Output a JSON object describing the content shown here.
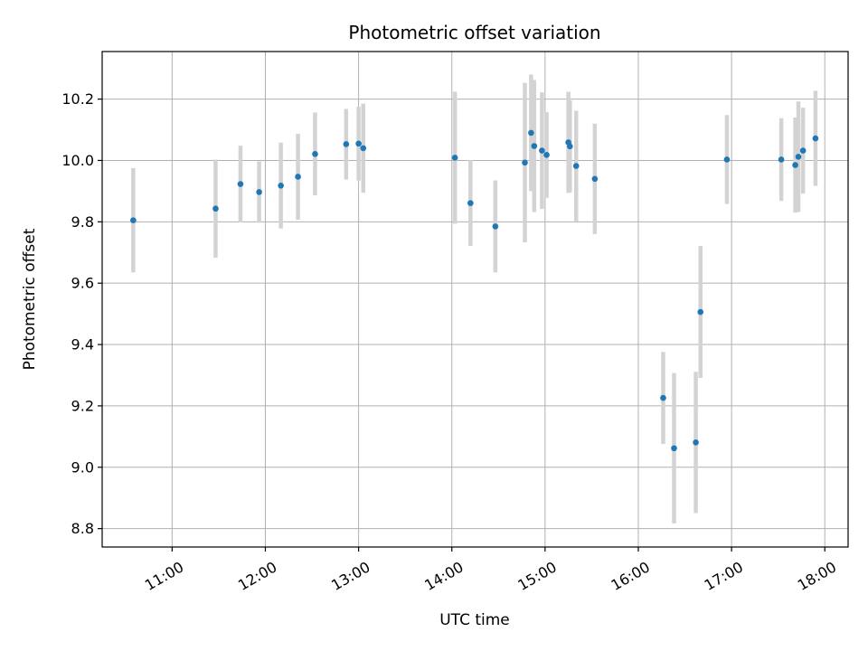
{
  "chart_data": {
    "type": "scatter",
    "title": "Photometric offset variation",
    "xlabel": "UTC time",
    "ylabel": "Photometric offset",
    "x_format": "HH:MM",
    "xlim": [
      "10:15",
      "18:15"
    ],
    "ylim": [
      8.74,
      10.355
    ],
    "x_ticks": [
      "11:00",
      "12:00",
      "13:00",
      "14:00",
      "15:00",
      "16:00",
      "17:00",
      "18:00"
    ],
    "y_ticks": [
      8.8,
      9.0,
      9.2,
      9.4,
      9.6,
      9.8,
      10.0,
      10.2
    ],
    "y_tick_labels": [
      "8.8",
      "9.0",
      "9.2",
      "9.4",
      "9.6",
      "9.8",
      "10.0",
      "10.2"
    ],
    "grid": true,
    "colors": {
      "point": "#1f77b4",
      "errorbar": "#d3d3d3",
      "grid": "#b0b0b0"
    },
    "points": [
      {
        "x": "10:35",
        "y": 9.805,
        "err": 0.17
      },
      {
        "x": "11:28",
        "y": 9.843,
        "err": 0.16
      },
      {
        "x": "11:44",
        "y": 9.923,
        "err": 0.125
      },
      {
        "x": "11:56",
        "y": 9.897,
        "err": 0.1
      },
      {
        "x": "12:10",
        "y": 9.918,
        "err": 0.14
      },
      {
        "x": "12:21",
        "y": 9.947,
        "err": 0.14
      },
      {
        "x": "12:32",
        "y": 10.021,
        "err": 0.135
      },
      {
        "x": "12:52",
        "y": 10.053,
        "err": 0.115
      },
      {
        "x": "13:00",
        "y": 10.055,
        "err": 0.12
      },
      {
        "x": "13:03",
        "y": 10.04,
        "err": 0.145
      },
      {
        "x": "14:02",
        "y": 10.009,
        "err": 0.215
      },
      {
        "x": "14:12",
        "y": 9.861,
        "err": 0.14
      },
      {
        "x": "14:28",
        "y": 9.785,
        "err": 0.15
      },
      {
        "x": "14:47",
        "y": 9.993,
        "err": 0.26
      },
      {
        "x": "14:51",
        "y": 10.09,
        "err": 0.19
      },
      {
        "x": "14:53",
        "y": 10.047,
        "err": 0.215
      },
      {
        "x": "14:58",
        "y": 10.032,
        "err": 0.19
      },
      {
        "x": "15:01",
        "y": 10.018,
        "err": 0.14
      },
      {
        "x": "15:15",
        "y": 10.059,
        "err": 0.165
      },
      {
        "x": "15:16",
        "y": 10.046,
        "err": 0.15
      },
      {
        "x": "15:20",
        "y": 9.982,
        "err": 0.18
      },
      {
        "x": "15:32",
        "y": 9.94,
        "err": 0.18
      },
      {
        "x": "16:16",
        "y": 9.226,
        "err": 0.15
      },
      {
        "x": "16:23",
        "y": 9.062,
        "err": 0.245
      },
      {
        "x": "16:37",
        "y": 9.081,
        "err": 0.23
      },
      {
        "x": "16:40",
        "y": 9.506,
        "err": 0.215
      },
      {
        "x": "16:57",
        "y": 10.003,
        "err": 0.145
      },
      {
        "x": "17:32",
        "y": 10.003,
        "err": 0.135
      },
      {
        "x": "17:41",
        "y": 9.985,
        "err": 0.155
      },
      {
        "x": "17:43",
        "y": 10.012,
        "err": 0.18
      },
      {
        "x": "17:46",
        "y": 10.032,
        "err": 0.14
      },
      {
        "x": "17:54",
        "y": 10.072,
        "err": 0.155
      }
    ]
  }
}
